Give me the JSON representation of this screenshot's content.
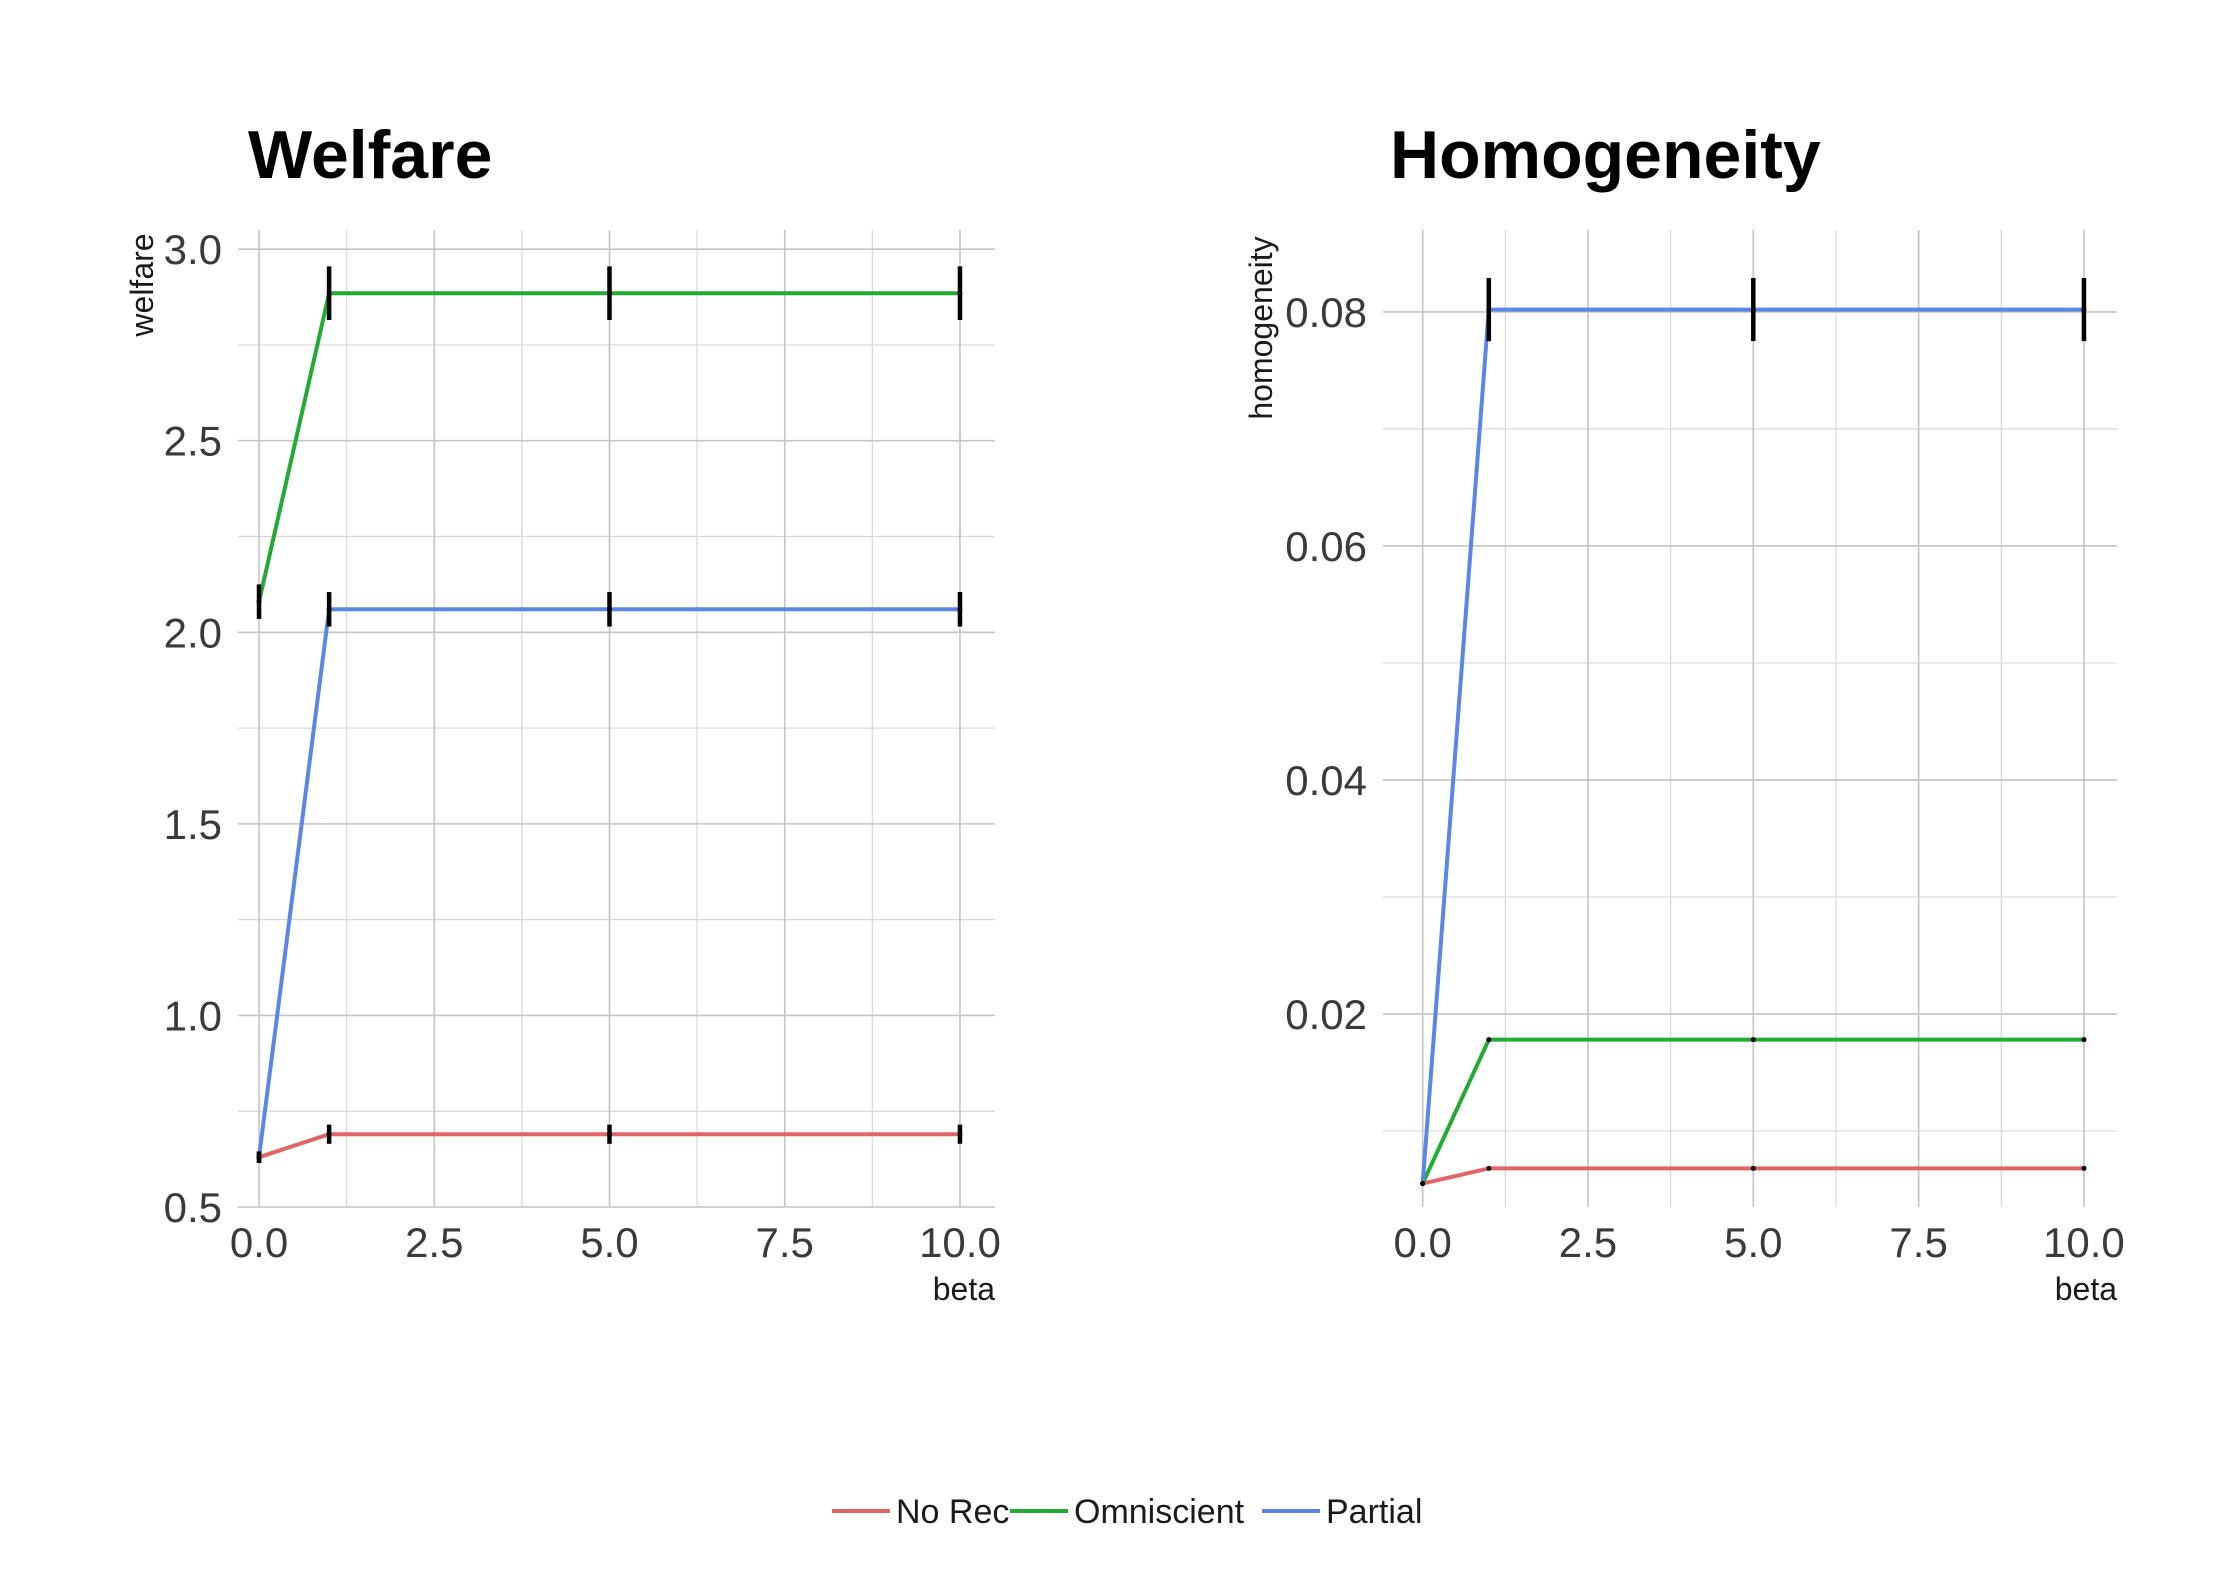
{
  "colors": {
    "No Rec": "#e06666",
    "Omniscient": "#22aa33",
    "Partial": "#5b86e5"
  },
  "legend": {
    "position": "bottom",
    "items": [
      {
        "label": "No Rec",
        "color": "#e06666"
      },
      {
        "label": "Omniscient",
        "color": "#22aa33"
      },
      {
        "label": "Partial",
        "color": "#5b86e5"
      }
    ]
  },
  "chart_data": [
    {
      "type": "line",
      "title": "Welfare",
      "xlabel": "beta",
      "ylabel": "welfare",
      "xlim": [
        -0.3,
        10.5
      ],
      "ylim": [
        0.5,
        3.05
      ],
      "x_ticks": [
        0,
        2.5,
        5,
        7.5,
        10
      ],
      "x_tick_labels": [
        "0.0",
        "2.5",
        "5.0",
        "7.5",
        "10.0"
      ],
      "y_ticks": [
        0.5,
        1.0,
        1.5,
        2.0,
        2.5,
        3.0
      ],
      "y_tick_labels": [
        "0.5",
        "1.0",
        "1.5",
        "2.0",
        "2.5",
        "3.0"
      ],
      "grid": true,
      "x": [
        0,
        1,
        5,
        10
      ],
      "series": [
        {
          "name": "No Rec",
          "values": [
            0.63,
            0.69,
            0.69,
            0.69
          ],
          "error": [
            0.015,
            0.025,
            0.025,
            0.025
          ]
        },
        {
          "name": "Omniscient",
          "values": [
            2.08,
            2.885,
            2.885,
            2.885
          ],
          "error": [
            0.045,
            0.07,
            0.07,
            0.07
          ]
        },
        {
          "name": "Partial",
          "values": [
            0.63,
            2.06,
            2.06,
            2.06
          ],
          "error": [
            0.015,
            0.045,
            0.045,
            0.045
          ]
        }
      ]
    },
    {
      "type": "line",
      "title": "Homogeneity",
      "xlabel": "beta",
      "ylabel": "homogeneity",
      "xlim": [
        -0.6,
        10.5
      ],
      "ylim": [
        0.0035,
        0.087
      ],
      "x_ticks": [
        0,
        2.5,
        5,
        7.5,
        10
      ],
      "x_tick_labels": [
        "0.0",
        "2.5",
        "5.0",
        "7.5",
        "10.0"
      ],
      "y_ticks": [
        0.02,
        0.04,
        0.06,
        0.08
      ],
      "y_tick_labels": [
        "0.02",
        "0.04",
        "0.06",
        "0.08"
      ],
      "grid": true,
      "x": [
        0,
        1,
        5,
        10
      ],
      "series": [
        {
          "name": "No Rec",
          "values": [
            0.0055,
            0.0068,
            0.0068,
            0.0068
          ],
          "error": [
            0.0001,
            0.0001,
            0.0001,
            0.0001
          ]
        },
        {
          "name": "Omniscient",
          "values": [
            0.0055,
            0.0178,
            0.0178,
            0.0178
          ],
          "error": [
            0.0001,
            0.0001,
            0.0001,
            0.0001
          ]
        },
        {
          "name": "Partial",
          "values": [
            0.0055,
            0.0802,
            0.0802,
            0.0802
          ],
          "error": [
            0.0001,
            0.0027,
            0.0027,
            0.0027
          ]
        }
      ]
    }
  ]
}
